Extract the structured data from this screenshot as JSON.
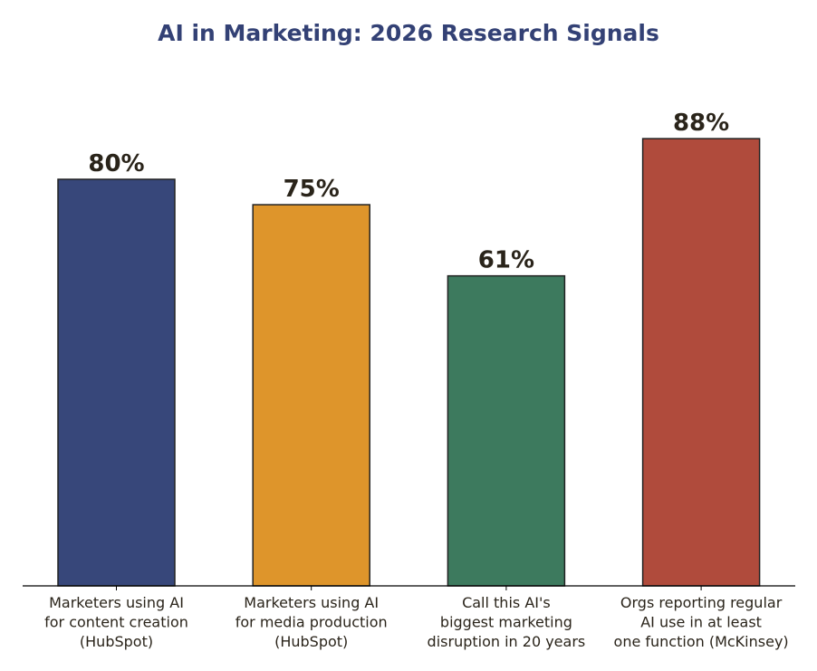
{
  "chart_data": {
    "type": "bar",
    "title": "AI in Marketing: 2026 Research Signals",
    "xlabel": "",
    "ylabel": "",
    "ylim": [
      0,
      100
    ],
    "grid": false,
    "categories": [
      [
        "Marketers using AI",
        "for content creation",
        "(HubSpot)"
      ],
      [
        "Marketers using AI",
        "for media production",
        "(HubSpot)"
      ],
      [
        "Call this AI's",
        "biggest marketing",
        "disruption in 20 years"
      ],
      [
        "Orgs reporting regular",
        "AI use in at least",
        "one function (McKinsey)"
      ]
    ],
    "values": [
      80,
      75,
      61,
      88
    ],
    "value_labels": [
      "80%",
      "75%",
      "61%",
      "88%"
    ],
    "bar_colors": [
      "#37477a",
      "#de952b",
      "#3d7a5e",
      "#b04b3c"
    ]
  },
  "colors": {
    "title": "#334175",
    "text": "#2a241a",
    "bar_edge": "#222222",
    "axis": "#000000"
  }
}
